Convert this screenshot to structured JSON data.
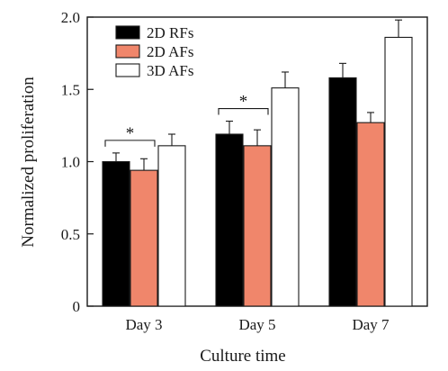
{
  "chart_data": {
    "type": "bar",
    "title": "",
    "xlabel": "Culture time",
    "ylabel": "Normalized proliferation",
    "ylim": [
      0,
      2.0
    ],
    "yticks": [
      0,
      0.5,
      1.0,
      1.5,
      2.0
    ],
    "ytick_labels": [
      "0",
      "0.5",
      "1.0",
      "1.5",
      "2.0"
    ],
    "categories": [
      "Day 3",
      "Day 5",
      "Day 7"
    ],
    "series": [
      {
        "name": "2D RFs",
        "color": "#000000",
        "values": [
          1.0,
          1.19,
          1.58
        ],
        "errors": [
          0.06,
          0.09,
          0.1
        ]
      },
      {
        "name": "2D AFs",
        "color": "#f0866b",
        "values": [
          0.94,
          1.11,
          1.27
        ],
        "errors": [
          0.08,
          0.11,
          0.07
        ]
      },
      {
        "name": "3D AFs",
        "color": "#ffffff",
        "values": [
          1.11,
          1.51,
          1.86
        ],
        "errors": [
          0.08,
          0.11,
          0.12
        ]
      }
    ],
    "grid": false,
    "legend_position": "top-left",
    "annotations": [
      {
        "text": "*",
        "category": "Day 3",
        "between": [
          "2D RFs",
          "2D AFs"
        ]
      },
      {
        "text": "*",
        "category": "Day 5",
        "between": [
          "2D RFs",
          "2D AFs"
        ]
      }
    ]
  }
}
